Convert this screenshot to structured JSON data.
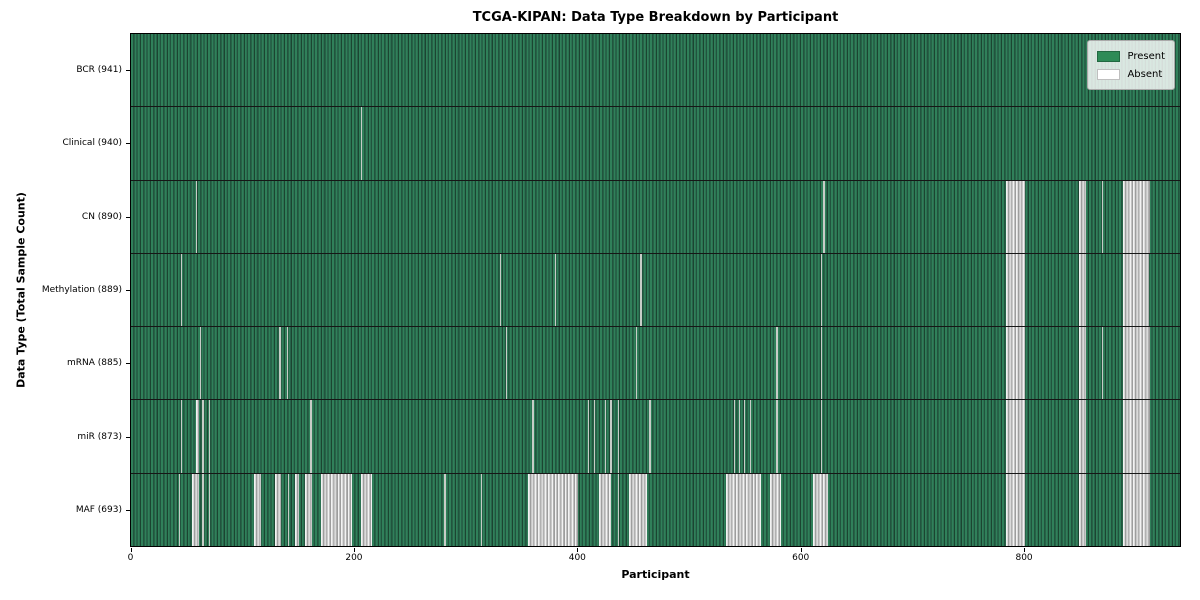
{
  "chart_data": {
    "type": "heatmap",
    "title": "TCGA-KIPAN: Data Type Breakdown by Participant",
    "xlabel": "Participant",
    "ylabel": "Data Type (Total Sample Count)",
    "n_participants": 941,
    "x_range": [
      0,
      941
    ],
    "x_ticks": [
      0,
      200,
      400,
      600,
      800
    ],
    "present_color": "#2E8B57",
    "absent_color": "#FFFFFF",
    "legend_position": "upper right",
    "grid": false,
    "legend_items": [
      {
        "label": "Present",
        "color": "#2E8B57"
      },
      {
        "label": "Absent",
        "color": "#FFFFFF"
      }
    ],
    "rows": [
      {
        "data_type": "BCR",
        "label": "BCR (941)",
        "sample_count": 941,
        "absent_ranges": []
      },
      {
        "data_type": "Clinical",
        "label": "Clinical (940)",
        "sample_count": 940,
        "absent_ranges": [
          [
            206,
            206
          ]
        ]
      },
      {
        "data_type": "CN",
        "label": "CN (890)",
        "sample_count": 890,
        "absent_ranges": [
          [
            58,
            58
          ],
          [
            621,
            621
          ],
          [
            785,
            801
          ],
          [
            850,
            856
          ],
          [
            871,
            871
          ],
          [
            890,
            913
          ]
        ]
      },
      {
        "data_type": "Methylation",
        "label": "Methylation (889)",
        "sample_count": 889,
        "absent_ranges": [
          [
            45,
            45
          ],
          [
            331,
            331
          ],
          [
            380,
            380
          ],
          [
            457,
            457
          ],
          [
            619,
            619
          ],
          [
            785,
            801
          ],
          [
            850,
            856
          ],
          [
            890,
            912
          ]
        ]
      },
      {
        "data_type": "mRNA",
        "label": "mRNA (885)",
        "sample_count": 885,
        "absent_ranges": [
          [
            62,
            62
          ],
          [
            133,
            133
          ],
          [
            140,
            140
          ],
          [
            336,
            336
          ],
          [
            453,
            453
          ],
          [
            579,
            579
          ],
          [
            619,
            619
          ],
          [
            785,
            801
          ],
          [
            850,
            856
          ],
          [
            871,
            871
          ],
          [
            890,
            913
          ]
        ]
      },
      {
        "data_type": "miR",
        "label": "miR (873)",
        "sample_count": 873,
        "absent_ranges": [
          [
            45,
            45
          ],
          [
            58,
            60
          ],
          [
            64,
            64
          ],
          [
            70,
            70
          ],
          [
            161,
            161
          ],
          [
            360,
            360
          ],
          [
            410,
            410
          ],
          [
            415,
            415
          ],
          [
            425,
            425
          ],
          [
            430,
            430
          ],
          [
            437,
            437
          ],
          [
            465,
            465
          ],
          [
            541,
            541
          ],
          [
            545,
            545
          ],
          [
            550,
            550
          ],
          [
            555,
            555
          ],
          [
            579,
            579
          ],
          [
            619,
            619
          ],
          [
            785,
            801
          ],
          [
            850,
            856
          ],
          [
            890,
            913
          ]
        ]
      },
      {
        "data_type": "MAF",
        "label": "MAF (693)",
        "sample_count": 693,
        "absent_ranges": [
          [
            43,
            43
          ],
          [
            55,
            60
          ],
          [
            64,
            64
          ],
          [
            70,
            70
          ],
          [
            110,
            116
          ],
          [
            129,
            134
          ],
          [
            141,
            141
          ],
          [
            147,
            150
          ],
          [
            156,
            161
          ],
          [
            170,
            197
          ],
          [
            206,
            215
          ],
          [
            281,
            281
          ],
          [
            314,
            314
          ],
          [
            356,
            400
          ],
          [
            420,
            430
          ],
          [
            437,
            437
          ],
          [
            447,
            462
          ],
          [
            534,
            564
          ],
          [
            573,
            582
          ],
          [
            612,
            624
          ],
          [
            785,
            801
          ],
          [
            850,
            856
          ],
          [
            890,
            913
          ]
        ]
      }
    ]
  }
}
